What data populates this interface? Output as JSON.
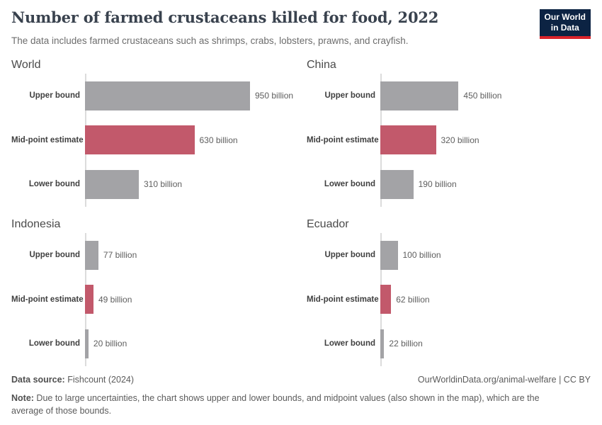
{
  "header": {
    "title": "Number of farmed crustaceans killed for food, 2022",
    "subtitle": "The data includes farmed crustaceans such as shrimps, crabs, lobsters, prawns, and crayfish.",
    "logo": {
      "line1": "Our World",
      "line2": "in Data"
    }
  },
  "chart_data": {
    "type": "bar",
    "orientation": "horizontal",
    "layout": "2x2-facets",
    "title": "Number of farmed crustaceans killed for food, 2022",
    "unit": "billion",
    "categories": [
      "Upper bound",
      "Mid-point estimate",
      "Lower bound"
    ],
    "shared_x_axis": true,
    "xlim": [
      0,
      950
    ],
    "grid": false,
    "legend": "none",
    "colors": {
      "bar_default": "#a3a3a6",
      "bar_midpoint": "#c2596b",
      "axis_line": "#dcdcdc"
    },
    "panels": [
      {
        "title": "World",
        "values": [
          950,
          630,
          310
        ],
        "value_labels": [
          "950 billion",
          "630 billion",
          "310 billion"
        ]
      },
      {
        "title": "China",
        "values": [
          450,
          320,
          190
        ],
        "value_labels": [
          "450 billion",
          "320 billion",
          "190 billion"
        ]
      },
      {
        "title": "Indonesia",
        "values": [
          77,
          49,
          20
        ],
        "value_labels": [
          "77 billion",
          "49 billion",
          "20 billion"
        ]
      },
      {
        "title": "Ecuador",
        "values": [
          100,
          62,
          22
        ],
        "value_labels": [
          "100 billion",
          "62 billion",
          "22 billion"
        ]
      }
    ]
  },
  "footer": {
    "datasource_label": "Data source:",
    "datasource_value": " Fishcount (2024)",
    "link": "OurWorldinData.org/animal-welfare | CC BY",
    "note_label": "Note:",
    "note_value": " Due to large uncertainties, the chart shows upper and lower bounds, and midpoint values (also shown in the map), which are the average of those bounds."
  }
}
